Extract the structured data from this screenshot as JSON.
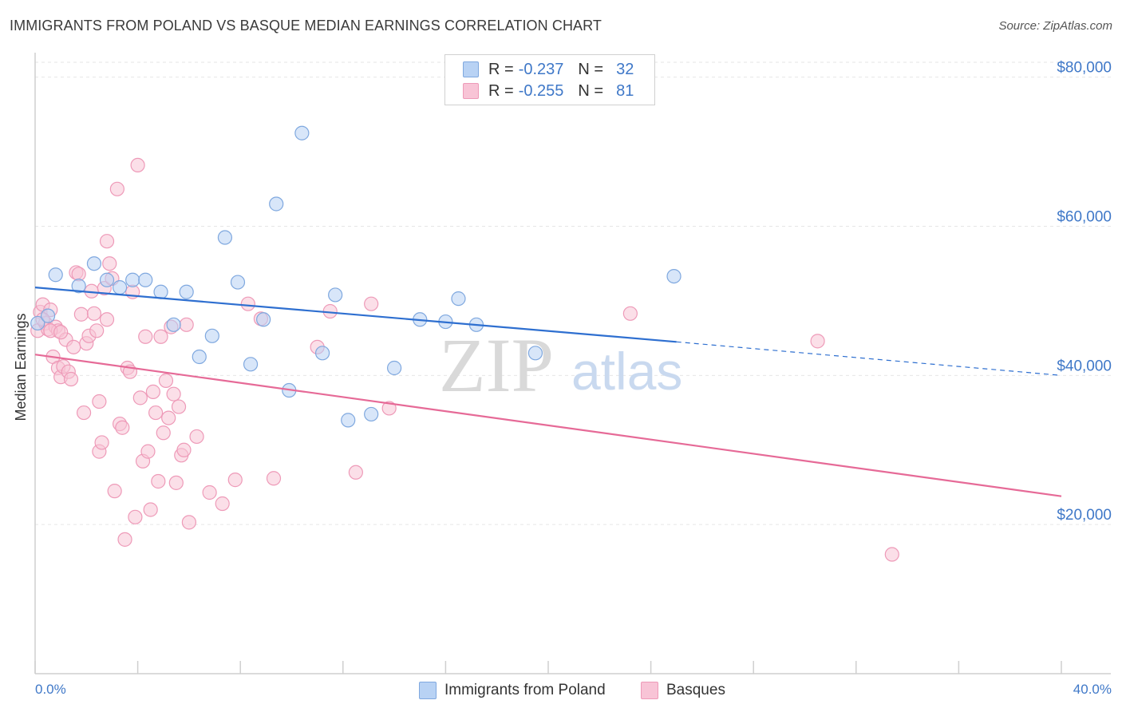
{
  "title": "IMMIGRANTS FROM POLAND VS BASQUE MEDIAN EARNINGS CORRELATION CHART",
  "source": "Source: ZipAtlas.com",
  "legend": {
    "r_label": "R =",
    "n_label": "N =",
    "series": [
      {
        "r": "-0.237",
        "n": "32"
      },
      {
        "r": "-0.255",
        "n": "81"
      }
    ]
  },
  "watermark": {
    "zip": "ZIP",
    "atlas": "atlas"
  },
  "colors": {
    "poland_fill": "#b8d2f4",
    "poland_stroke": "#7fa8df",
    "poland_line": "#2e6fd0",
    "basque_fill": "#f8c4d6",
    "basque_stroke": "#ee9ab8",
    "basque_line": "#e66a97",
    "tick_text": "#3f78c8"
  },
  "chart_data": {
    "type": "scatter",
    "title": "IMMIGRANTS FROM POLAND VS BASQUE MEDIAN EARNINGS CORRELATION CHART",
    "xlabel": "",
    "ylabel": "Median Earnings",
    "xlim": [
      0,
      40
    ],
    "ylim": [
      0,
      82000
    ],
    "x_tick_labels": [
      "0.0%",
      "40.0%"
    ],
    "y_ticks": [
      20000,
      40000,
      60000,
      80000
    ],
    "y_tick_labels": [
      "$20,000",
      "$40,000",
      "$60,000",
      "$80,000"
    ],
    "grid": true,
    "series": [
      {
        "name": "Immigrants from Poland",
        "r": -0.237,
        "n": 32,
        "trend": {
          "x0": 0,
          "y0": 51800,
          "x1": 25,
          "y1": 44500,
          "dashed_to_x": 40,
          "dashed_to_y": 40000
        },
        "points": [
          [
            0.1,
            47000
          ],
          [
            0.5,
            48000
          ],
          [
            0.8,
            53500
          ],
          [
            1.7,
            52000
          ],
          [
            2.3,
            55000
          ],
          [
            2.8,
            52800
          ],
          [
            3.3,
            51800
          ],
          [
            3.8,
            52800
          ],
          [
            4.3,
            52800
          ],
          [
            4.9,
            51200
          ],
          [
            5.4,
            46800
          ],
          [
            5.9,
            51200
          ],
          [
            6.4,
            42500
          ],
          [
            6.9,
            45300
          ],
          [
            7.4,
            58500
          ],
          [
            7.9,
            52500
          ],
          [
            8.4,
            41500
          ],
          [
            8.9,
            47500
          ],
          [
            9.4,
            63000
          ],
          [
            9.9,
            38000
          ],
          [
            10.4,
            72500
          ],
          [
            11.2,
            43000
          ],
          [
            11.7,
            50800
          ],
          [
            12.2,
            34000
          ],
          [
            13.1,
            34800
          ],
          [
            14.0,
            41000
          ],
          [
            15.0,
            47500
          ],
          [
            16.0,
            47200
          ],
          [
            16.5,
            50300
          ],
          [
            17.2,
            46800
          ],
          [
            19.5,
            43000
          ],
          [
            24.9,
            53300
          ]
        ]
      },
      {
        "name": "Basques",
        "r": -0.255,
        "n": 81,
        "trend": {
          "x0": 0,
          "y0": 42800,
          "x1": 40,
          "y1": 23800
        },
        "points": [
          [
            0.1,
            46000
          ],
          [
            0.2,
            48500
          ],
          [
            0.3,
            49500
          ],
          [
            0.4,
            47000
          ],
          [
            0.5,
            46200
          ],
          [
            0.6,
            48800
          ],
          [
            0.7,
            42500
          ],
          [
            0.8,
            46500
          ],
          [
            0.9,
            46000
          ],
          [
            0.9,
            41000
          ],
          [
            1.0,
            39800
          ],
          [
            1.1,
            41200
          ],
          [
            1.2,
            44800
          ],
          [
            1.3,
            40500
          ],
          [
            1.4,
            39500
          ],
          [
            1.5,
            43800
          ],
          [
            1.6,
            53800
          ],
          [
            1.7,
            53600
          ],
          [
            1.8,
            48200
          ],
          [
            1.9,
            35000
          ],
          [
            2.0,
            44300
          ],
          [
            2.1,
            45300
          ],
          [
            2.2,
            51300
          ],
          [
            2.3,
            48300
          ],
          [
            2.4,
            46000
          ],
          [
            2.5,
            36500
          ],
          [
            2.5,
            29800
          ],
          [
            2.6,
            31000
          ],
          [
            2.7,
            51700
          ],
          [
            2.8,
            47500
          ],
          [
            2.8,
            58000
          ],
          [
            2.9,
            55000
          ],
          [
            3.0,
            53000
          ],
          [
            3.1,
            24500
          ],
          [
            3.2,
            65000
          ],
          [
            3.3,
            33500
          ],
          [
            3.4,
            33000
          ],
          [
            3.5,
            18000
          ],
          [
            3.6,
            41000
          ],
          [
            3.7,
            40500
          ],
          [
            3.8,
            51200
          ],
          [
            3.9,
            21000
          ],
          [
            4.0,
            68200
          ],
          [
            4.1,
            37000
          ],
          [
            4.2,
            28500
          ],
          [
            4.3,
            45200
          ],
          [
            4.4,
            29800
          ],
          [
            4.5,
            22000
          ],
          [
            4.6,
            37800
          ],
          [
            4.7,
            35000
          ],
          [
            4.8,
            25800
          ],
          [
            4.9,
            45200
          ],
          [
            5.0,
            32300
          ],
          [
            5.1,
            39300
          ],
          [
            5.2,
            34300
          ],
          [
            5.3,
            46500
          ],
          [
            5.4,
            37500
          ],
          [
            5.5,
            25600
          ],
          [
            5.6,
            35800
          ],
          [
            5.7,
            29300
          ],
          [
            5.8,
            30000
          ],
          [
            5.9,
            46800
          ],
          [
            6.0,
            20300
          ],
          [
            6.3,
            31800
          ],
          [
            6.8,
            24300
          ],
          [
            7.3,
            22800
          ],
          [
            7.8,
            26000
          ],
          [
            8.3,
            49600
          ],
          [
            8.8,
            47600
          ],
          [
            9.3,
            26200
          ],
          [
            11.0,
            43800
          ],
          [
            11.5,
            48600
          ],
          [
            12.5,
            27000
          ],
          [
            13.1,
            49600
          ],
          [
            13.8,
            35600
          ],
          [
            23.2,
            48300
          ],
          [
            30.5,
            44600
          ],
          [
            33.4,
            16000
          ],
          [
            0.3,
            47500
          ],
          [
            0.6,
            46000
          ],
          [
            1.0,
            45800
          ]
        ]
      }
    ]
  }
}
